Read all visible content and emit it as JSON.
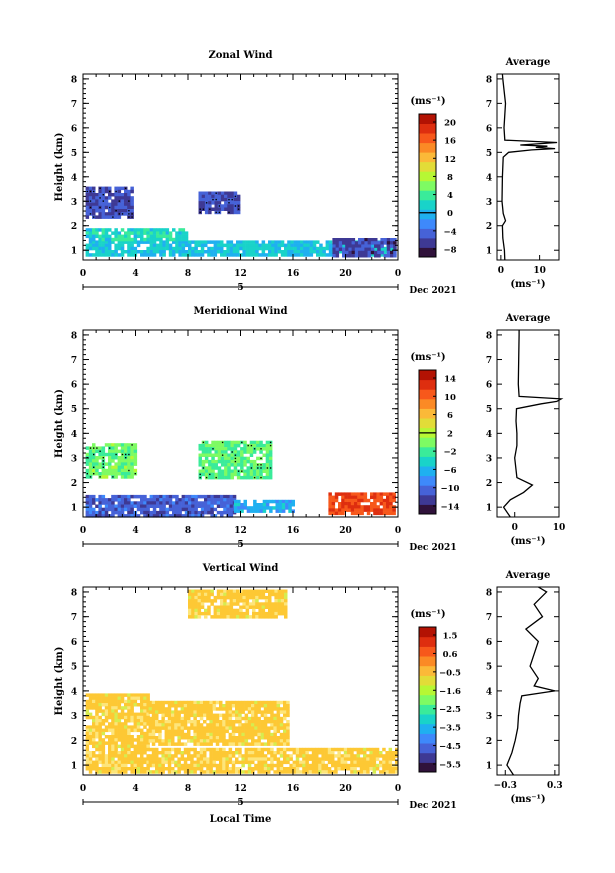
{
  "colors": {
    "jet": [
      "#30123b",
      "#3e3994",
      "#4662d7",
      "#3e89fb",
      "#1fb0f0",
      "#19d3c9",
      "#3aeb9a",
      "#7efb63",
      "#b7f734",
      "#e2dc38",
      "#fbb938",
      "#fb8a25",
      "#f7581b",
      "#de2e0f",
      "#b31203"
    ],
    "vertical_field": "#fdc834",
    "vertical_field_light": "#fde57a",
    "vertical_field_green": "#d7ec4f"
  },
  "chart_data": [
    {
      "type": "heatmap",
      "title": "Zonal Wind",
      "ylabel": "Height (km)",
      "xlabel": "",
      "date_label": "Dec 2021",
      "day_label": "5",
      "xticks": [
        "0",
        "4",
        "8",
        "12",
        "16",
        "20",
        "0"
      ],
      "xlim": [
        0,
        24
      ],
      "yticks": [
        "1",
        "2",
        "3",
        "4",
        "5",
        "6",
        "7",
        "8"
      ],
      "ylim": [
        0.6,
        8.2
      ],
      "colorbar": {
        "unit": "(ms⁻¹)",
        "ticks": [
          "20",
          "16",
          "12",
          "8",
          "4",
          "0",
          "−4",
          "−8"
        ],
        "range": [
          -10,
          22
        ],
        "zero_tick": "0"
      },
      "regions": [
        {
          "x0": 0.2,
          "x1": 23.8,
          "y0": 0.75,
          "y1": 1.4,
          "level": 0.34
        },
        {
          "x0": 0.2,
          "x1": 8.0,
          "y0": 1.4,
          "y1": 1.9,
          "level": 0.38
        },
        {
          "x0": 19.0,
          "x1": 23.8,
          "y0": 0.75,
          "y1": 1.5,
          "level": 0.12
        },
        {
          "x0": 0.2,
          "x1": 3.7,
          "y0": 2.4,
          "y1": 3.6,
          "level": 0.14
        },
        {
          "x0": 8.8,
          "x1": 11.8,
          "y0": 2.5,
          "y1": 3.4,
          "level": 0.14
        }
      ],
      "avg_panel": {
        "title": "Average",
        "xticks": [
          "0",
          "10"
        ],
        "xlim": [
          -1,
          15
        ],
        "xunit": "(ms⁻¹)",
        "profile": [
          [
            0.6,
            1.0
          ],
          [
            1.0,
            0.9
          ],
          [
            1.5,
            0.5
          ],
          [
            2.0,
            0.4
          ],
          [
            2.2,
            1.2
          ],
          [
            2.5,
            0.6
          ],
          [
            3.0,
            0.3
          ],
          [
            4.0,
            0.4
          ],
          [
            4.8,
            0.6
          ],
          [
            5.0,
            2.0
          ],
          [
            5.1,
            8.0
          ],
          [
            5.15,
            14.0
          ],
          [
            5.2,
            9.0
          ],
          [
            5.25,
            12.0
          ],
          [
            5.3,
            5.0
          ],
          [
            5.4,
            14.5
          ],
          [
            5.5,
            1.0
          ],
          [
            6.0,
            0.8
          ],
          [
            7.0,
            1.2
          ],
          [
            8.0,
            0.5
          ],
          [
            8.2,
            0.4
          ]
        ]
      }
    },
    {
      "type": "heatmap",
      "title": "Meridional Wind",
      "ylabel": "Height (km)",
      "xlabel": "",
      "date_label": "Dec 2021",
      "day_label": "5",
      "xticks": [
        "0",
        "4",
        "8",
        "12",
        "16",
        "20",
        "0"
      ],
      "xlim": [
        0,
        24
      ],
      "yticks": [
        "1",
        "2",
        "3",
        "4",
        "5",
        "6",
        "7",
        "8"
      ],
      "ylim": [
        0.6,
        8.2
      ],
      "colorbar": {
        "unit": "(ms⁻¹)",
        "ticks": [
          "14",
          "10",
          "6",
          "2",
          "−2",
          "−6",
          "−10",
          "−14"
        ],
        "range": [
          -16,
          16
        ],
        "zero_tick": "2"
      },
      "regions": [
        {
          "x0": 0.2,
          "x1": 11.5,
          "y0": 0.7,
          "y1": 1.5,
          "level": 0.16
        },
        {
          "x0": 11.5,
          "x1": 16.0,
          "y0": 0.8,
          "y1": 1.3,
          "level": 0.3
        },
        {
          "x0": 18.7,
          "x1": 23.6,
          "y0": 0.8,
          "y1": 1.6,
          "level": 0.86
        },
        {
          "x0": 0.2,
          "x1": 3.9,
          "y0": 2.2,
          "y1": 3.6,
          "level": 0.48
        },
        {
          "x0": 8.8,
          "x1": 14.4,
          "y0": 2.2,
          "y1": 3.7,
          "level": 0.46
        }
      ],
      "avg_panel": {
        "title": "Average",
        "xticks": [
          "0",
          "10"
        ],
        "xlim": [
          -4,
          10
        ],
        "xunit": "(ms⁻¹)",
        "profile": [
          [
            0.6,
            -1.0
          ],
          [
            1.0,
            -2.5
          ],
          [
            1.3,
            -1.0
          ],
          [
            1.6,
            2.0
          ],
          [
            1.9,
            4.0
          ],
          [
            2.2,
            0.5
          ],
          [
            3.0,
            0.0
          ],
          [
            3.5,
            0.5
          ],
          [
            4.0,
            0.5
          ],
          [
            4.5,
            0.3
          ],
          [
            5.0,
            0.4
          ],
          [
            5.2,
            6.0
          ],
          [
            5.3,
            9.5
          ],
          [
            5.4,
            10.5
          ],
          [
            5.5,
            1.0
          ],
          [
            6.0,
            0.8
          ],
          [
            7.0,
            0.9
          ],
          [
            8.0,
            1.0
          ],
          [
            8.2,
            1.0
          ]
        ]
      }
    },
    {
      "type": "heatmap",
      "title": "Vertical Wind",
      "ylabel": "Height (km)",
      "xlabel": "Local Time",
      "date_label": "Dec 2021",
      "day_label": "5",
      "xticks": [
        "0",
        "4",
        "8",
        "12",
        "16",
        "20",
        "0"
      ],
      "xlim": [
        0,
        24
      ],
      "yticks": [
        "1",
        "2",
        "3",
        "4",
        "5",
        "6",
        "7",
        "8"
      ],
      "ylim": [
        0.6,
        8.2
      ],
      "colorbar": {
        "unit": "(ms⁻¹)",
        "ticks": [
          "1.5",
          "0.6",
          "−0.5",
          "−1.6",
          "−2.5",
          "−3.5",
          "−4.5",
          "−5.5"
        ],
        "range": [
          -6,
          2
        ],
        "zero_tick": ""
      },
      "regions": [
        {
          "x0": 0.2,
          "x1": 5.0,
          "y0": 0.7,
          "y1": 3.9,
          "level": 0.72
        },
        {
          "x0": 5.0,
          "x1": 15.5,
          "y0": 1.8,
          "y1": 3.6,
          "level": 0.72
        },
        {
          "x0": 5.0,
          "x1": 23.8,
          "y0": 0.7,
          "y1": 1.7,
          "level": 0.74
        },
        {
          "x0": 8.0,
          "x1": 15.5,
          "y0": 7.0,
          "y1": 8.1,
          "level": 0.72
        }
      ],
      "avg_panel": {
        "title": "Average",
        "xticks": [
          "−0.3",
          "0.3"
        ],
        "xlim": [
          -0.4,
          0.35
        ],
        "xunit": "(ms⁻¹)",
        "profile": [
          [
            0.6,
            -0.2
          ],
          [
            1.0,
            -0.28
          ],
          [
            1.5,
            -0.22
          ],
          [
            2.0,
            -0.18
          ],
          [
            2.5,
            -0.15
          ],
          [
            3.0,
            -0.14
          ],
          [
            3.5,
            -0.12
          ],
          [
            3.8,
            -0.1
          ],
          [
            4.0,
            0.3
          ],
          [
            4.2,
            0.05
          ],
          [
            4.5,
            0.1
          ],
          [
            5.0,
            0.0
          ],
          [
            5.5,
            0.05
          ],
          [
            6.0,
            0.1
          ],
          [
            6.5,
            -0.05
          ],
          [
            7.0,
            0.15
          ],
          [
            7.5,
            0.05
          ],
          [
            8.0,
            0.2
          ],
          [
            8.2,
            0.1
          ]
        ]
      }
    }
  ]
}
